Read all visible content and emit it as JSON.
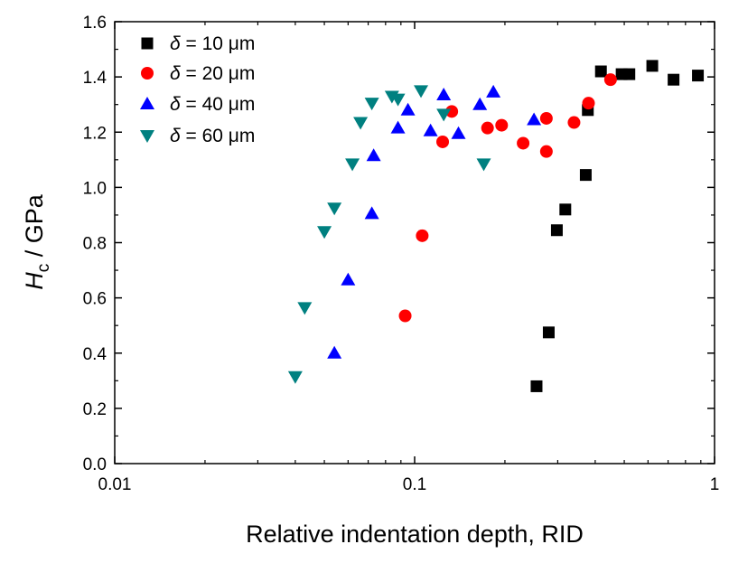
{
  "chart_data": {
    "type": "scatter",
    "xlabel": "Relative indentation depth, RID",
    "ylabel_main": "H",
    "ylabel_sub": "c",
    "ylabel_rest": " / GPa",
    "xscale": "log",
    "xlim": [
      0.01,
      1
    ],
    "ylim": [
      0,
      1.6
    ],
    "xticks": [
      0.01,
      0.1,
      1
    ],
    "xtick_labels": [
      "0.01",
      "0.1",
      "1"
    ],
    "yticks": [
      0,
      0.2,
      0.4,
      0.6,
      0.8,
      1.0,
      1.2,
      1.4,
      1.6
    ],
    "ytick_labels": [
      "0.0",
      "0.2",
      "0.4",
      "0.6",
      "0.8",
      "1.0",
      "1.2",
      "1.4",
      "1.6"
    ],
    "grid": false,
    "legend_position": "top-left",
    "series": [
      {
        "name": "δ = 10 μm",
        "name_symbol": "δ",
        "name_rest": " = 10 μm",
        "marker": "square",
        "color": "#000000",
        "x": [
          0.255,
          0.28,
          0.298,
          0.318,
          0.372,
          0.378,
          0.418,
          0.49,
          0.52,
          0.62,
          0.73,
          0.88
        ],
        "y": [
          0.28,
          0.475,
          0.845,
          0.92,
          1.045,
          1.28,
          1.42,
          1.41,
          1.41,
          1.44,
          1.39,
          1.405
        ]
      },
      {
        "name": "δ = 20 μm",
        "name_symbol": "δ",
        "name_rest": " = 20 μm",
        "marker": "circle",
        "color": "#ff0000",
        "x": [
          0.093,
          0.106,
          0.124,
          0.133,
          0.175,
          0.195,
          0.23,
          0.275,
          0.275,
          0.34,
          0.38,
          0.45
        ],
        "y": [
          0.535,
          0.825,
          1.165,
          1.275,
          1.215,
          1.225,
          1.16,
          1.13,
          1.25,
          1.235,
          1.305,
          1.39
        ]
      },
      {
        "name": "δ = 40 μm",
        "name_symbol": "δ",
        "name_rest": " = 40 μm",
        "marker": "triangle-up",
        "color": "#0000ff",
        "x": [
          0.054,
          0.06,
          0.072,
          0.073,
          0.088,
          0.095,
          0.113,
          0.125,
          0.14,
          0.165,
          0.183,
          0.25
        ],
        "y": [
          0.4,
          0.665,
          0.905,
          1.115,
          1.215,
          1.28,
          1.205,
          1.335,
          1.195,
          1.3,
          1.345,
          1.245
        ]
      },
      {
        "name": "δ = 60 μm",
        "name_symbol": "δ",
        "name_rest": " = 60 μm",
        "marker": "triangle-down",
        "color": "#008080",
        "x": [
          0.04,
          0.043,
          0.05,
          0.054,
          0.062,
          0.066,
          0.072,
          0.084,
          0.088,
          0.105,
          0.125,
          0.17
        ],
        "y": [
          0.315,
          0.565,
          0.84,
          0.925,
          1.085,
          1.235,
          1.305,
          1.33,
          1.32,
          1.35,
          1.265,
          1.085
        ]
      }
    ]
  }
}
